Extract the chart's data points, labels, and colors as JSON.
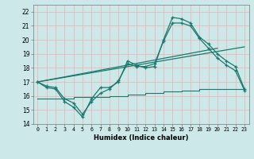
{
  "xlabel": "Humidex (Indice chaleur)",
  "ylabel": "",
  "bg_color": "#cce8e8",
  "line_color": "#1a7a6e",
  "grid_color": "#e8b8b8",
  "xlim": [
    -0.5,
    23.5
  ],
  "ylim": [
    14,
    22.5
  ],
  "yticks": [
    14,
    15,
    16,
    17,
    18,
    19,
    20,
    21,
    22
  ],
  "xticks": [
    0,
    1,
    2,
    3,
    4,
    5,
    6,
    7,
    8,
    9,
    10,
    11,
    12,
    13,
    14,
    15,
    16,
    17,
    18,
    19,
    20,
    21,
    22,
    23
  ],
  "line1_x": [
    0,
    1,
    2,
    3,
    4,
    5,
    6,
    7,
    8,
    9,
    10,
    11,
    12,
    13,
    14,
    15,
    16,
    17,
    18,
    19,
    20,
    21,
    22,
    23
  ],
  "line1_y": [
    17.0,
    16.6,
    16.5,
    15.6,
    15.2,
    14.5,
    15.8,
    16.6,
    16.6,
    17.0,
    18.5,
    18.2,
    18.0,
    18.1,
    20.0,
    21.6,
    21.5,
    21.2,
    20.2,
    19.7,
    19.0,
    18.5,
    18.1,
    16.5
  ],
  "line2_x": [
    0,
    1,
    2,
    3,
    4,
    5,
    6,
    7,
    8,
    9,
    10,
    11,
    12,
    13,
    14,
    15,
    16,
    17,
    18,
    19,
    20,
    21,
    22,
    23
  ],
  "line2_y": [
    17.0,
    16.7,
    16.6,
    15.8,
    15.5,
    14.7,
    15.6,
    16.2,
    16.5,
    17.1,
    18.3,
    18.1,
    18.1,
    18.3,
    19.9,
    21.2,
    21.2,
    21.0,
    20.1,
    19.4,
    18.7,
    18.2,
    17.8,
    16.4
  ],
  "line3_x": [
    0,
    23
  ],
  "line3_y": [
    17.0,
    19.5
  ],
  "line4_x": [
    0,
    20
  ],
  "line4_y": [
    17.0,
    19.4
  ],
  "line5_x": [
    0,
    1,
    2,
    3,
    4,
    5,
    6,
    7,
    8,
    9,
    10,
    11,
    12,
    13,
    14,
    15,
    16,
    17,
    18,
    19,
    20,
    21,
    22,
    23
  ],
  "line5_y": [
    15.8,
    15.8,
    15.8,
    15.8,
    15.9,
    15.9,
    15.9,
    15.9,
    16.0,
    16.0,
    16.1,
    16.1,
    16.2,
    16.2,
    16.3,
    16.3,
    16.4,
    16.4,
    16.5,
    16.5,
    16.5,
    16.5,
    16.5,
    16.5
  ]
}
